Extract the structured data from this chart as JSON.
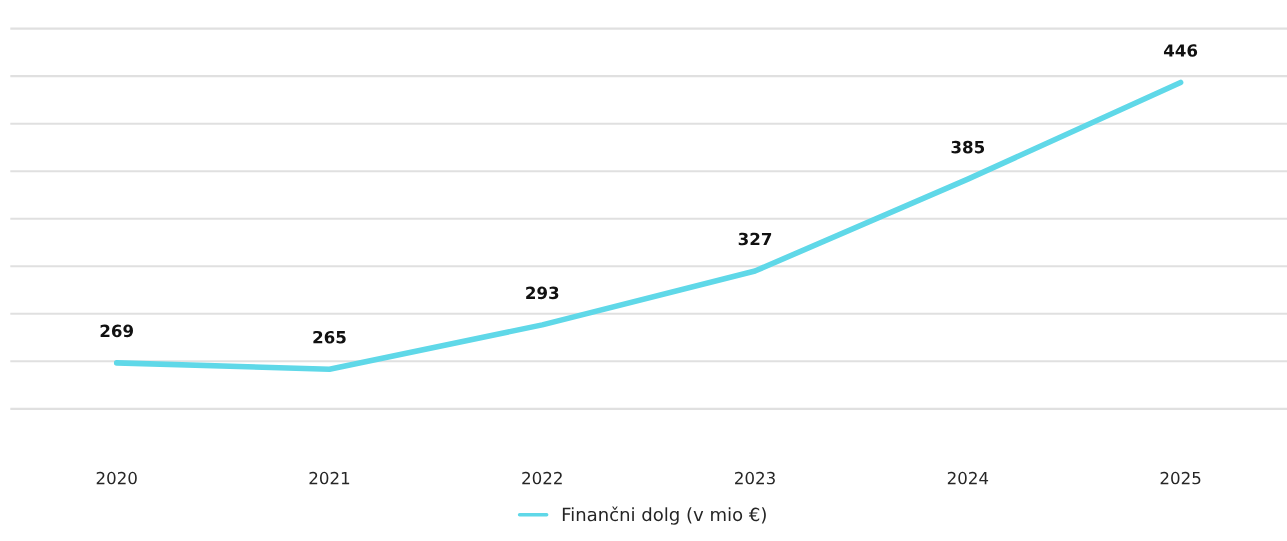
{
  "chart_data": {
    "type": "line",
    "categories": [
      "2020",
      "2021",
      "2022",
      "2023",
      "2024",
      "2025"
    ],
    "series": [
      {
        "name": "Finančni dolg (v mio €)",
        "color": "#5fd8e8",
        "values": [
          269,
          265,
          293,
          327,
          385,
          446
        ]
      }
    ],
    "tick_labels": "x",
    "grid": "y",
    "legend": "bottom",
    "data_labels": true,
    "marker": "none",
    "line_style": "solid"
  }
}
